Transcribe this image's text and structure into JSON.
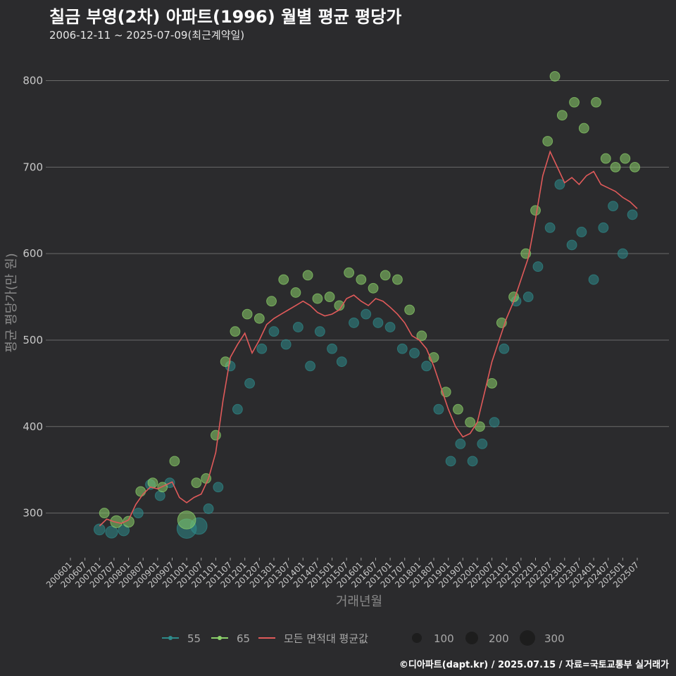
{
  "header": {
    "title": "칠금 부영(2차) 아파트(1996) 월별 평균 평당가",
    "subtitle": "2006-12-11 ~ 2025-07-09(최근계약일)"
  },
  "footer": {
    "credit": "©디아파트(dapt.kr) / 2025.07.15 / 자료=국토교통부 실거래가"
  },
  "colors": {
    "s55": "#2e8a8a",
    "s65": "#8bd06a",
    "avg": "#e05a5a",
    "grid": "#6a6a6a"
  },
  "chart_data": {
    "type": "line",
    "xlabel": "거래년월",
    "ylabel": "평균 평당가(만 원)",
    "ylim": [
      250,
      820
    ],
    "yticks": [
      300,
      400,
      500,
      600,
      700,
      800
    ],
    "xticks": [
      "200601",
      "200607",
      "200701",
      "200707",
      "200801",
      "200807",
      "200901",
      "200907",
      "201001",
      "201007",
      "201101",
      "201107",
      "201201",
      "201207",
      "201301",
      "201307",
      "201401",
      "201407",
      "201501",
      "201507",
      "201601",
      "201607",
      "201701",
      "201707",
      "201801",
      "201807",
      "201901",
      "201907",
      "202001",
      "202007",
      "202101",
      "202107",
      "202201",
      "202207",
      "202301",
      "202307",
      "202401",
      "202407",
      "202501",
      "202507"
    ],
    "legend": {
      "series": [
        "55",
        "65",
        "모든 면적대 평균값"
      ],
      "sizes": [
        "100",
        "200",
        "300"
      ]
    },
    "series": [
      {
        "name": "모든 면적대 평균값",
        "kind": "line",
        "points": [
          [
            "2007-01",
            285
          ],
          [
            "2007-04",
            293
          ],
          [
            "2007-07",
            290
          ],
          [
            "2007-10",
            288
          ],
          [
            "2008-01",
            292
          ],
          [
            "2008-04",
            310
          ],
          [
            "2008-07",
            322
          ],
          [
            "2008-10",
            330
          ],
          [
            "2009-01",
            328
          ],
          [
            "2009-04",
            332
          ],
          [
            "2009-07",
            336
          ],
          [
            "2009-10",
            318
          ],
          [
            "2010-01",
            312
          ],
          [
            "2010-04",
            318
          ],
          [
            "2010-07",
            322
          ],
          [
            "2010-10",
            340
          ],
          [
            "2011-01",
            370
          ],
          [
            "2011-04",
            430
          ],
          [
            "2011-07",
            480
          ],
          [
            "2011-10",
            495
          ],
          [
            "2012-01",
            508
          ],
          [
            "2012-04",
            485
          ],
          [
            "2012-07",
            500
          ],
          [
            "2012-10",
            518
          ],
          [
            "2013-01",
            525
          ],
          [
            "2013-04",
            530
          ],
          [
            "2013-07",
            535
          ],
          [
            "2013-10",
            540
          ],
          [
            "2014-01",
            545
          ],
          [
            "2014-04",
            540
          ],
          [
            "2014-07",
            532
          ],
          [
            "2014-10",
            528
          ],
          [
            "2015-01",
            530
          ],
          [
            "2015-04",
            535
          ],
          [
            "2015-07",
            548
          ],
          [
            "2015-10",
            552
          ],
          [
            "2016-01",
            545
          ],
          [
            "2016-04",
            540
          ],
          [
            "2016-07",
            548
          ],
          [
            "2016-10",
            545
          ],
          [
            "2017-01",
            538
          ],
          [
            "2017-04",
            530
          ],
          [
            "2017-07",
            520
          ],
          [
            "2017-10",
            505
          ],
          [
            "2018-01",
            500
          ],
          [
            "2018-04",
            490
          ],
          [
            "2018-07",
            470
          ],
          [
            "2018-10",
            445
          ],
          [
            "2019-01",
            420
          ],
          [
            "2019-04",
            400
          ],
          [
            "2019-07",
            388
          ],
          [
            "2019-10",
            392
          ],
          [
            "2020-01",
            405
          ],
          [
            "2020-04",
            440
          ],
          [
            "2020-07",
            475
          ],
          [
            "2020-10",
            500
          ],
          [
            "2021-01",
            525
          ],
          [
            "2021-04",
            545
          ],
          [
            "2021-07",
            570
          ],
          [
            "2021-10",
            595
          ],
          [
            "2022-01",
            640
          ],
          [
            "2022-04",
            690
          ],
          [
            "2022-07",
            718
          ],
          [
            "2022-10",
            700
          ],
          [
            "2023-01",
            682
          ],
          [
            "2023-04",
            688
          ],
          [
            "2023-07",
            680
          ],
          [
            "2023-10",
            690
          ],
          [
            "2024-01",
            695
          ],
          [
            "2024-04",
            680
          ],
          [
            "2024-07",
            676
          ],
          [
            "2024-10",
            672
          ],
          [
            "2025-01",
            665
          ],
          [
            "2025-04",
            660
          ],
          [
            "2025-07",
            652
          ]
        ]
      },
      {
        "name": "55",
        "kind": "scatter",
        "points": [
          [
            "2007-01",
            281,
            60
          ],
          [
            "2007-06",
            278,
            80
          ],
          [
            "2007-11",
            280,
            60
          ],
          [
            "2008-05",
            300,
            40
          ],
          [
            "2008-10",
            333,
            40
          ],
          [
            "2009-02",
            320,
            40
          ],
          [
            "2009-06",
            335,
            40
          ],
          [
            "2010-01",
            282,
            300
          ],
          [
            "2010-06",
            285,
            200
          ],
          [
            "2010-10",
            305,
            40
          ],
          [
            "2011-02",
            330,
            40
          ],
          [
            "2011-07",
            470,
            40
          ],
          [
            "2011-10",
            420,
            40
          ],
          [
            "2012-03",
            450,
            40
          ],
          [
            "2012-08",
            490,
            40
          ],
          [
            "2013-01",
            510,
            40
          ],
          [
            "2013-06",
            495,
            40
          ],
          [
            "2013-11",
            515,
            40
          ],
          [
            "2014-04",
            470,
            40
          ],
          [
            "2014-08",
            510,
            40
          ],
          [
            "2015-01",
            490,
            40
          ],
          [
            "2015-05",
            475,
            40
          ],
          [
            "2015-10",
            520,
            40
          ],
          [
            "2016-03",
            530,
            40
          ],
          [
            "2016-08",
            520,
            40
          ],
          [
            "2017-01",
            515,
            40
          ],
          [
            "2017-06",
            490,
            40
          ],
          [
            "2017-11",
            485,
            40
          ],
          [
            "2018-04",
            470,
            40
          ],
          [
            "2018-09",
            420,
            40
          ],
          [
            "2019-02",
            360,
            40
          ],
          [
            "2019-06",
            380,
            40
          ],
          [
            "2019-11",
            360,
            40
          ],
          [
            "2020-03",
            380,
            40
          ],
          [
            "2020-08",
            405,
            40
          ],
          [
            "2020-12",
            490,
            40
          ],
          [
            "2021-05",
            545,
            40
          ],
          [
            "2021-10",
            550,
            40
          ],
          [
            "2022-02",
            585,
            40
          ],
          [
            "2022-07",
            630,
            40
          ],
          [
            "2022-11",
            680,
            40
          ],
          [
            "2023-04",
            610,
            40
          ],
          [
            "2023-08",
            625,
            40
          ],
          [
            "2024-01",
            570,
            40
          ],
          [
            "2024-05",
            630,
            40
          ],
          [
            "2024-09",
            655,
            40
          ],
          [
            "2025-01",
            600,
            40
          ],
          [
            "2025-05",
            645,
            40
          ]
        ]
      },
      {
        "name": "65",
        "kind": "scatter",
        "points": [
          [
            "2007-03",
            300,
            40
          ],
          [
            "2007-08",
            290,
            80
          ],
          [
            "2008-01",
            290,
            60
          ],
          [
            "2008-06",
            325,
            40
          ],
          [
            "2008-11",
            335,
            40
          ],
          [
            "2009-03",
            330,
            40
          ],
          [
            "2009-08",
            360,
            40
          ],
          [
            "2010-01",
            292,
            250
          ],
          [
            "2010-05",
            335,
            40
          ],
          [
            "2010-09",
            340,
            40
          ],
          [
            "2011-01",
            390,
            40
          ],
          [
            "2011-05",
            475,
            40
          ],
          [
            "2011-09",
            510,
            40
          ],
          [
            "2012-02",
            530,
            40
          ],
          [
            "2012-07",
            525,
            40
          ],
          [
            "2012-12",
            545,
            40
          ],
          [
            "2013-05",
            570,
            40
          ],
          [
            "2013-10",
            555,
            40
          ],
          [
            "2014-03",
            575,
            40
          ],
          [
            "2014-07",
            548,
            40
          ],
          [
            "2014-12",
            550,
            40
          ],
          [
            "2015-04",
            540,
            40
          ],
          [
            "2015-08",
            578,
            40
          ],
          [
            "2016-01",
            570,
            40
          ],
          [
            "2016-06",
            560,
            40
          ],
          [
            "2016-11",
            575,
            40
          ],
          [
            "2017-04",
            570,
            40
          ],
          [
            "2017-09",
            535,
            40
          ],
          [
            "2018-02",
            505,
            40
          ],
          [
            "2018-07",
            480,
            40
          ],
          [
            "2018-12",
            440,
            40
          ],
          [
            "2019-05",
            420,
            40
          ],
          [
            "2019-10",
            405,
            40
          ],
          [
            "2020-02",
            400,
            40
          ],
          [
            "2020-07",
            450,
            40
          ],
          [
            "2020-11",
            520,
            40
          ],
          [
            "2021-04",
            550,
            40
          ],
          [
            "2021-09",
            600,
            40
          ],
          [
            "2022-01",
            650,
            40
          ],
          [
            "2022-06",
            730,
            40
          ],
          [
            "2022-09",
            805,
            40
          ],
          [
            "2022-12",
            760,
            40
          ],
          [
            "2023-05",
            775,
            40
          ],
          [
            "2023-09",
            745,
            40
          ],
          [
            "2024-02",
            775,
            40
          ],
          [
            "2024-06",
            710,
            40
          ],
          [
            "2024-10",
            700,
            40
          ],
          [
            "2025-02",
            710,
            40
          ],
          [
            "2025-06",
            700,
            40
          ]
        ]
      }
    ]
  }
}
